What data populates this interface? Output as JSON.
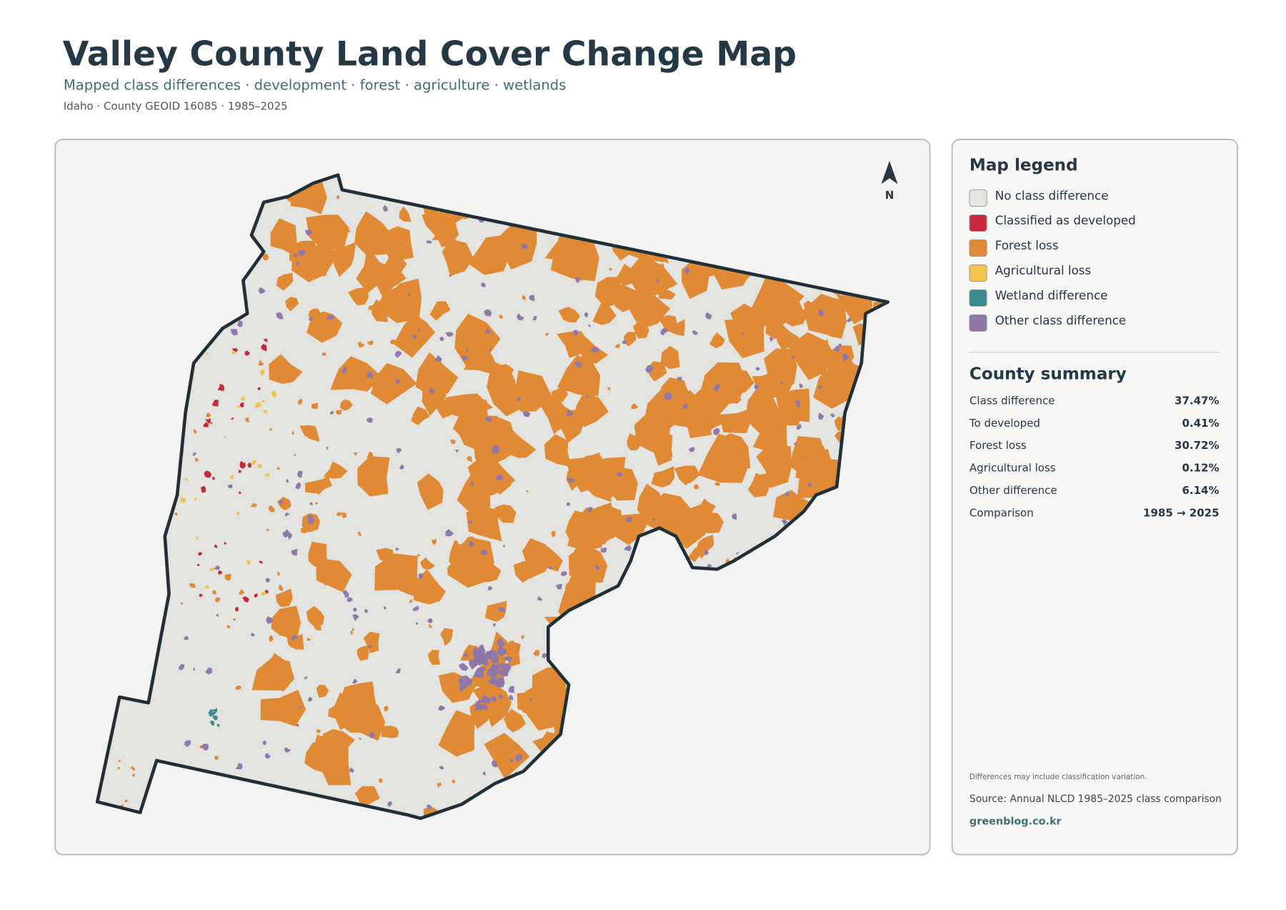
{
  "header": {
    "title": "Valley County Land Cover Change Map",
    "subtitle": "Mapped class differences · development · forest · agriculture · wetlands",
    "meta": "Idaho · County GEOID 16085 · 1985–2025"
  },
  "map": {
    "north_label": "N"
  },
  "legend": {
    "title": "Map legend",
    "items": [
      {
        "label": "No class difference",
        "color": "#e3e3e0"
      },
      {
        "label": "Classified as developed",
        "color": "#c8293a"
      },
      {
        "label": "Forest loss",
        "color": "#e08a35"
      },
      {
        "label": "Agricultural loss",
        "color": "#f0c44c"
      },
      {
        "label": "Wetland difference",
        "color": "#3f8a8f"
      },
      {
        "label": "Other class difference",
        "color": "#9178aa"
      }
    ]
  },
  "summary": {
    "title": "County summary",
    "rows": [
      [
        "Class difference",
        "37.47%"
      ],
      [
        "To developed",
        "0.41%"
      ],
      [
        "Forest loss",
        "30.72%"
      ],
      [
        "Agricultural loss",
        "0.12%"
      ],
      [
        "Other difference",
        "6.14%"
      ],
      [
        "Comparison",
        "1985 → 2025"
      ]
    ]
  },
  "footer": {
    "note": "Differences may include classification variation.",
    "source": "Source: Annual NLCD 1985–2025 class comparison",
    "website": "greenblog.co.kr"
  }
}
